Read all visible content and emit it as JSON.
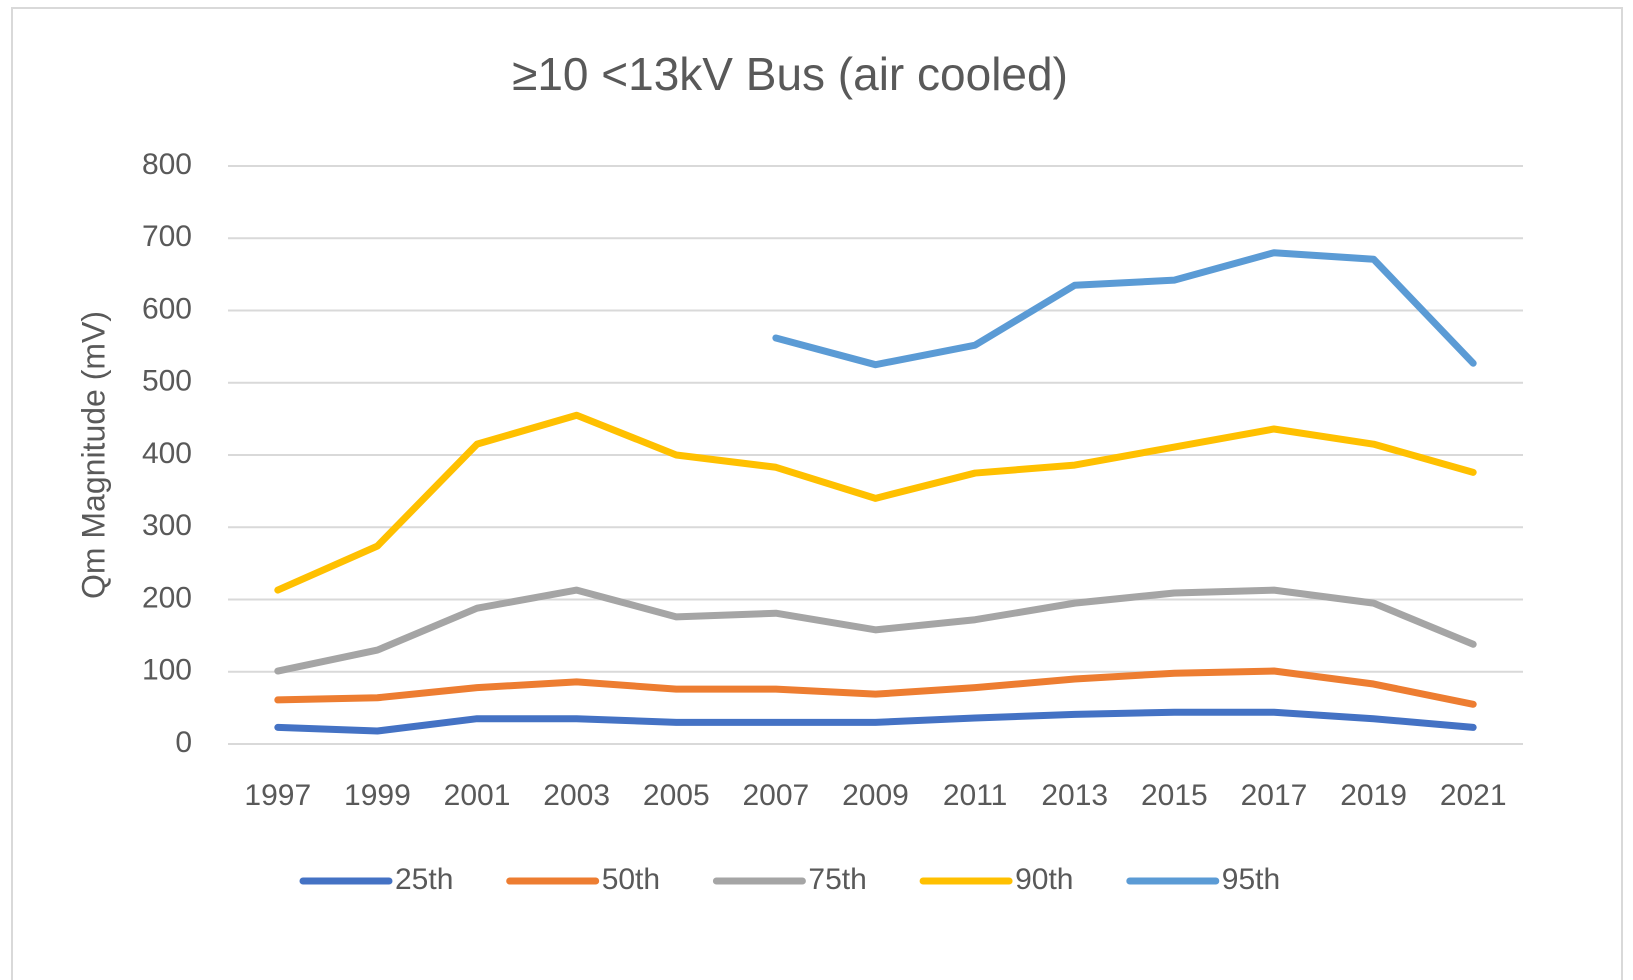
{
  "chart_data": {
    "type": "line",
    "title": "≥10 <13kV Bus (air cooled)",
    "y_label": "Qm Magnitude (mV)",
    "categories": [
      "1997",
      "1999",
      "2001",
      "2003",
      "2005",
      "2007",
      "2009",
      "2011",
      "2013",
      "2015",
      "2017",
      "2019",
      "2021"
    ],
    "series": [
      {
        "name": "25th",
        "color": "#4472c4",
        "values": [
          23,
          18,
          35,
          35,
          30,
          30,
          30,
          36,
          41,
          44,
          44,
          35,
          23
        ]
      },
      {
        "name": "50th",
        "color": "#ed7d31",
        "values": [
          61,
          64,
          78,
          86,
          76,
          76,
          69,
          78,
          90,
          98,
          101,
          83,
          55
        ]
      },
      {
        "name": "75th",
        "color": "#a5a5a5",
        "values": [
          101,
          130,
          188,
          213,
          176,
          181,
          158,
          172,
          195,
          209,
          213,
          195,
          138
        ]
      },
      {
        "name": "90th",
        "color": "#ffc000",
        "values": [
          213,
          274,
          415,
          455,
          400,
          383,
          340,
          375,
          386,
          411,
          436,
          415,
          376
        ]
      },
      {
        "name": "95th",
        "color": "#5b9bd5",
        "values": [
          null,
          null,
          null,
          null,
          null,
          562,
          525,
          552,
          635,
          642,
          680,
          671,
          527
        ]
      }
    ],
    "ylim": [
      0,
      800
    ],
    "yticks": [
      0,
      100,
      200,
      300,
      400,
      500,
      600,
      700,
      800
    ],
    "grid": true,
    "legend": "bottom"
  }
}
